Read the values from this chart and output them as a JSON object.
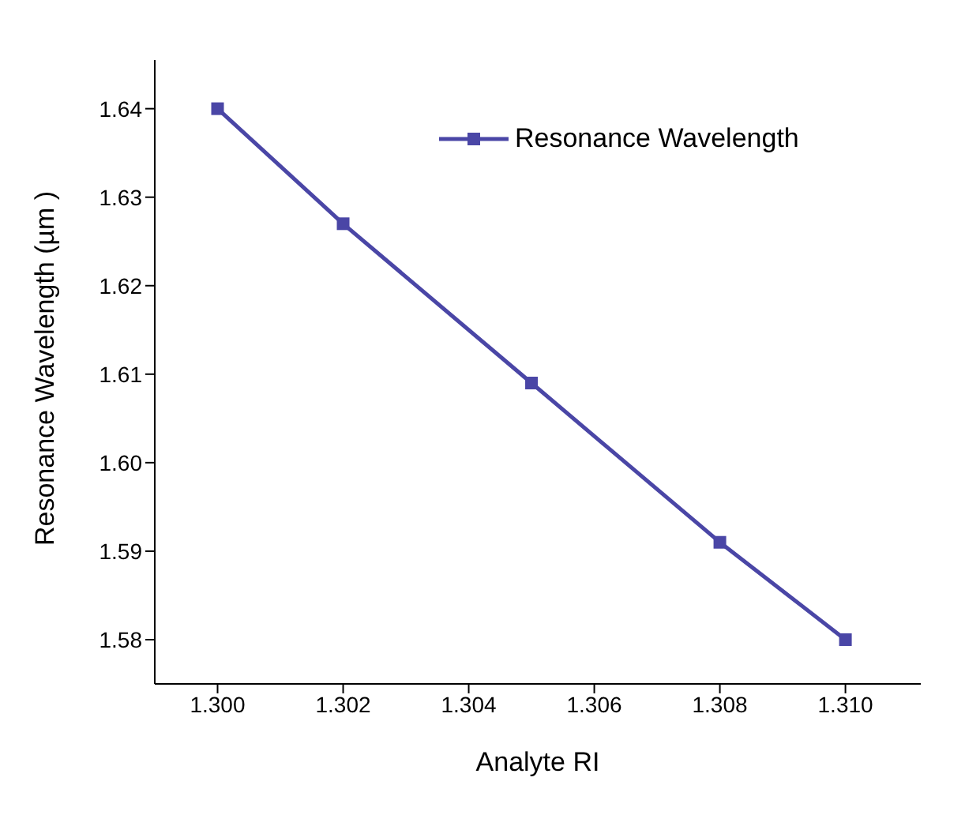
{
  "chart_data": {
    "type": "line",
    "xlabel": "Analyte RI",
    "ylabel": "Resonance Wavelength (µm )",
    "x": [
      1.3,
      1.302,
      1.305,
      1.308,
      1.31
    ],
    "series": [
      {
        "name": "Resonance Wavelength",
        "color": "#4a46a6",
        "values": [
          1.64,
          1.627,
          1.609,
          1.591,
          1.58
        ]
      }
    ],
    "xlim": [
      1.299,
      1.3112
    ],
    "xticks": [
      {
        "value": 1.3,
        "label": "1.300"
      },
      {
        "value": 1.302,
        "label": "1.302"
      },
      {
        "value": 1.304,
        "label": "1.304"
      },
      {
        "value": 1.306,
        "label": "1.306"
      },
      {
        "value": 1.308,
        "label": "1.308"
      },
      {
        "value": 1.31,
        "label": "1.310"
      }
    ],
    "ylim": [
      1.575,
      1.6455
    ],
    "yticks": [
      {
        "value": 1.58,
        "label": "1.58"
      },
      {
        "value": 1.59,
        "label": "1.59"
      },
      {
        "value": 1.6,
        "label": "1.60"
      },
      {
        "value": 1.61,
        "label": "1.61"
      },
      {
        "value": 1.62,
        "label": "1.62"
      },
      {
        "value": 1.63,
        "label": "1.63"
      },
      {
        "value": 1.64,
        "label": "1.64"
      }
    ],
    "marker": "square",
    "line_style": "solid",
    "legend": "top right",
    "grid": false
  }
}
